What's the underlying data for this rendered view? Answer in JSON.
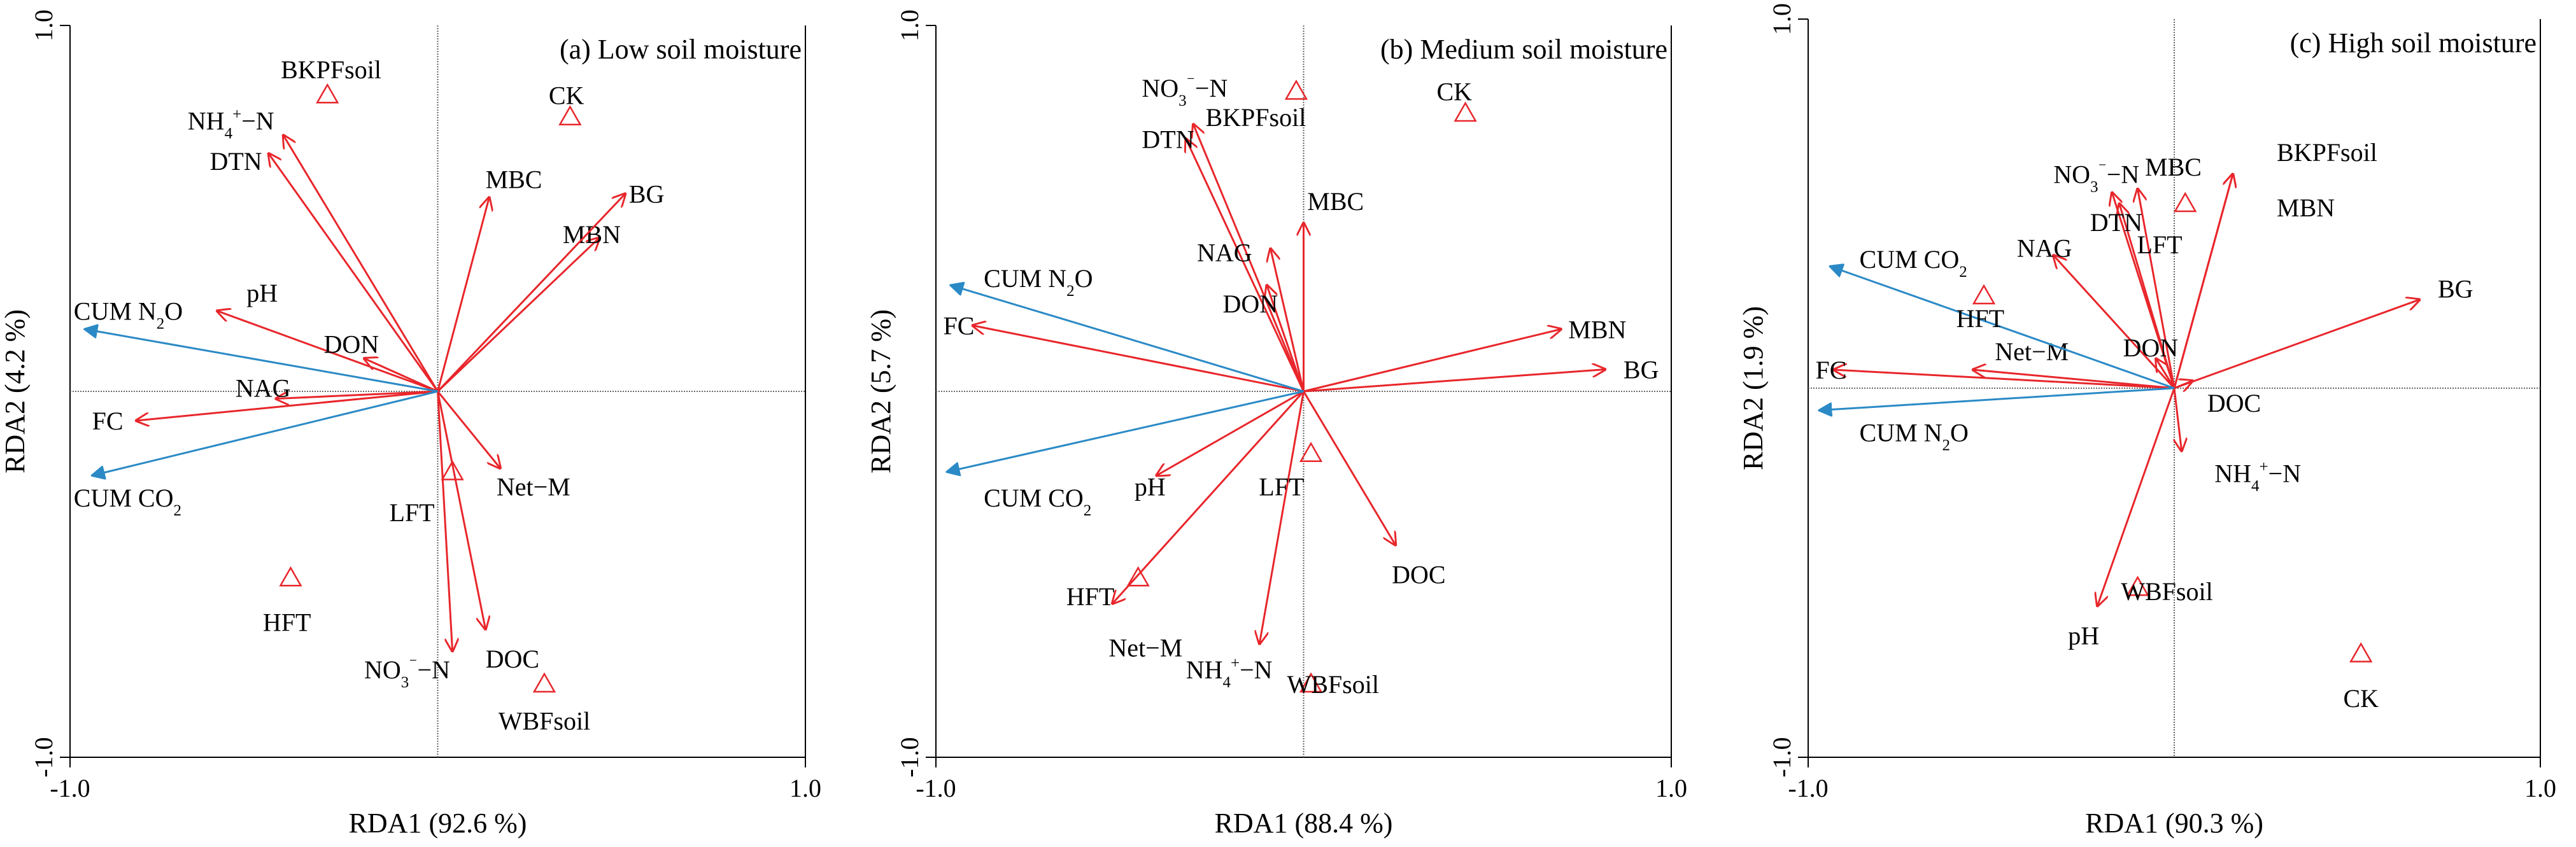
{
  "colors": {
    "response": "#2b8ac6",
    "explanatory": "#e8262b",
    "treatment": "#e8262b",
    "axis": "#000000",
    "refline": "#666666"
  },
  "chart_data": [
    {
      "type": "scatter",
      "title": "(a) Low soil moisture",
      "xlabel": "RDA1 (92.6 %)",
      "ylabel": "RDA2 (4.2 %)",
      "xlim": [
        -1.0,
        1.0
      ],
      "ylim": [
        -1.0,
        1.0
      ],
      "xticks": [
        {
          "v": -1.0,
          "label": "-1.0"
        },
        {
          "v": 1.0,
          "label": "1.0"
        }
      ],
      "yticks": [
        {
          "v": 1.0,
          "label": "1.0"
        },
        {
          "v": -1.0,
          "label": "-1.0"
        }
      ],
      "response_arrows": [
        {
          "name": "CUM N2O",
          "sub": "2",
          "x": -0.96,
          "y": 0.17,
          "lx": -0.99,
          "ly": 0.22
        },
        {
          "name": "CUM CO",
          "sub": "2",
          "x": -0.94,
          "y": -0.23,
          "lx": -0.99,
          "ly": -0.29
        }
      ],
      "explanatory_arrows": [
        {
          "name": "NH4+−N",
          "x": -0.42,
          "y": 0.7,
          "lx": -0.68,
          "ly": 0.74
        },
        {
          "name": "DTN",
          "x": -0.46,
          "y": 0.65,
          "lx": -0.62,
          "ly": 0.63
        },
        {
          "name": "MBC",
          "x": 0.14,
          "y": 0.53,
          "lx": 0.13,
          "ly": 0.58
        },
        {
          "name": "MBN",
          "x": 0.44,
          "y": 0.42,
          "lx": 0.34,
          "ly": 0.43
        },
        {
          "name": "BG",
          "x": 0.51,
          "y": 0.54,
          "lx": 0.52,
          "ly": 0.54
        },
        {
          "name": "pH",
          "x": -0.6,
          "y": 0.22,
          "lx": -0.52,
          "ly": 0.27
        },
        {
          "name": "DON",
          "x": -0.2,
          "y": 0.09,
          "lx": -0.31,
          "ly": 0.13
        },
        {
          "name": "NAG",
          "x": -0.44,
          "y": -0.02,
          "lx": -0.55,
          "ly": 0.01
        },
        {
          "name": "FC",
          "x": -0.82,
          "y": -0.08,
          "lx": -0.94,
          "ly": -0.08
        },
        {
          "name": "Net−M",
          "x": 0.17,
          "y": -0.21,
          "lx": 0.16,
          "ly": -0.26
        },
        {
          "name": "NO3−N",
          "x": 0.04,
          "y": -0.71,
          "lx": -0.2,
          "ly": -0.76
        },
        {
          "name": "DOC",
          "x": 0.13,
          "y": -0.65,
          "lx": 0.13,
          "ly": -0.73
        }
      ],
      "treatments": [
        {
          "name": "BKPFsoil",
          "x": -0.3,
          "y": 0.81,
          "lx": -0.29,
          "ly": 0.88
        },
        {
          "name": "CK",
          "x": 0.36,
          "y": 0.75,
          "lx": 0.35,
          "ly": 0.81
        },
        {
          "name": "LFT",
          "x": 0.04,
          "y": -0.22,
          "lx": -0.07,
          "ly": -0.33
        },
        {
          "name": "HFT",
          "x": -0.4,
          "y": -0.51,
          "lx": -0.41,
          "ly": -0.63
        },
        {
          "name": "WBFsoil",
          "x": 0.29,
          "y": -0.8,
          "lx": 0.29,
          "ly": -0.9
        }
      ]
    },
    {
      "type": "scatter",
      "title": "(b) Medium soil moisture",
      "xlabel": "RDA1 (88.4 %)",
      "ylabel": "RDA2 (5.7 %)",
      "xlim": [
        -1.0,
        1.0
      ],
      "ylim": [
        -1.0,
        1.0
      ],
      "xticks": [
        {
          "v": -1.0,
          "label": "-1.0"
        },
        {
          "v": 1.0,
          "label": "1.0"
        }
      ],
      "yticks": [
        {
          "v": 1.0,
          "label": "1.0"
        },
        {
          "v": -1.0,
          "label": "-1.0"
        }
      ],
      "response_arrows": [
        {
          "name": "CUM N2O",
          "sub": "2",
          "x": -0.96,
          "y": 0.29,
          "lx": -0.87,
          "ly": 0.31
        },
        {
          "name": "CUM CO",
          "sub": "2",
          "x": -0.97,
          "y": -0.22,
          "lx": -0.87,
          "ly": -0.29
        }
      ],
      "explanatory_arrows": [
        {
          "name": "NO3−N",
          "x": -0.3,
          "y": 0.73,
          "lx": -0.44,
          "ly": 0.83
        },
        {
          "name": "DTN",
          "x": -0.32,
          "y": 0.69,
          "lx": -0.44,
          "ly": 0.69
        },
        {
          "name": "MBC",
          "x": 0.0,
          "y": 0.46,
          "lx": 0.01,
          "ly": 0.52
        },
        {
          "name": "NAG",
          "x": -0.09,
          "y": 0.39,
          "lx": -0.29,
          "ly": 0.38
        },
        {
          "name": "DON",
          "x": -0.1,
          "y": 0.29,
          "lx": -0.22,
          "ly": 0.24
        },
        {
          "name": "FC",
          "x": -0.9,
          "y": 0.18,
          "lx": -0.98,
          "ly": 0.18
        },
        {
          "name": "MBN",
          "x": 0.7,
          "y": 0.17,
          "lx": 0.72,
          "ly": 0.17
        },
        {
          "name": "BG",
          "x": 0.82,
          "y": 0.06,
          "lx": 0.87,
          "ly": 0.06
        },
        {
          "name": "pH",
          "x": -0.4,
          "y": -0.23,
          "lx": -0.46,
          "ly": -0.26
        },
        {
          "name": "DOC",
          "x": 0.25,
          "y": -0.42,
          "lx": 0.24,
          "ly": -0.5
        },
        {
          "name": "Net−M",
          "x": -0.52,
          "y": -0.58,
          "lx": -0.53,
          "ly": -0.7
        },
        {
          "name": "NH4+−N",
          "x": -0.12,
          "y": -0.69,
          "lx": -0.32,
          "ly": -0.76
        }
      ],
      "treatments": [
        {
          "name": "BKPFsoil",
          "x": -0.02,
          "y": 0.82,
          "lx": -0.13,
          "ly": 0.75
        },
        {
          "name": "CK",
          "x": 0.44,
          "y": 0.76,
          "lx": 0.41,
          "ly": 0.82
        },
        {
          "name": "LFT",
          "x": 0.02,
          "y": -0.17,
          "lx": -0.06,
          "ly": -0.26
        },
        {
          "name": "HFT",
          "x": -0.45,
          "y": -0.51,
          "lx": -0.58,
          "ly": -0.56
        },
        {
          "name": "WBFsoil",
          "x": 0.02,
          "y": -0.8,
          "lx": 0.08,
          "ly": -0.8
        }
      ]
    },
    {
      "type": "scatter",
      "title": "(c) High soil moisture",
      "xlabel": "RDA1 (90.3 %)",
      "ylabel": "RDA2 (1.9 %)",
      "xlim": [
        -1.0,
        1.0
      ],
      "ylim": [
        -1.0,
        1.0
      ],
      "xticks": [
        {
          "v": -1.0,
          "label": "-1.0"
        },
        {
          "v": 1.0,
          "label": "1.0"
        }
      ],
      "yticks": [
        {
          "v": 1.0,
          "label": "1.0"
        },
        {
          "v": -1.0,
          "label": "-1.0"
        }
      ],
      "response_arrows": [
        {
          "name": "CUM CO",
          "sub": "2",
          "x": -0.94,
          "y": 0.33,
          "lx": -0.86,
          "ly": 0.35
        },
        {
          "name": "CUM N2O",
          "sub": "2",
          "x": -0.97,
          "y": -0.06,
          "lx": -0.86,
          "ly": -0.12
        }
      ],
      "explanatory_arrows": [
        {
          "name": "NO3−N",
          "x": -0.17,
          "y": 0.53,
          "lx": -0.33,
          "ly": 0.58
        },
        {
          "name": "MBC",
          "x": -0.1,
          "y": 0.54,
          "lx": -0.08,
          "ly": 0.6
        },
        {
          "name": "DTN",
          "x": -0.15,
          "y": 0.5,
          "lx": -0.23,
          "ly": 0.45
        },
        {
          "name": "NAG",
          "x": -0.33,
          "y": 0.36,
          "lx": -0.43,
          "ly": 0.38
        },
        {
          "name": "BKPFsoil",
          "x": 0.16,
          "y": 0.58,
          "lx": 0.28,
          "ly": 0.64
        },
        {
          "name": "MBN",
          "x": 0.16,
          "y": 0.58,
          "lx": 0.28,
          "ly": 0.49
        },
        {
          "name": "BG",
          "x": 0.67,
          "y": 0.24,
          "lx": 0.72,
          "ly": 0.27
        },
        {
          "name": "DON",
          "x": -0.05,
          "y": 0.08,
          "lx": -0.14,
          "ly": 0.11
        },
        {
          "name": "Net−M",
          "x": -0.55,
          "y": 0.05,
          "lx": -0.49,
          "ly": 0.1
        },
        {
          "name": "FC",
          "x": -0.93,
          "y": 0.05,
          "lx": -0.98,
          "ly": 0.05
        },
        {
          "name": "DOC",
          "x": 0.05,
          "y": 0.02,
          "lx": 0.09,
          "ly": -0.04
        },
        {
          "name": "NH4+−N",
          "x": 0.02,
          "y": -0.17,
          "lx": 0.11,
          "ly": -0.23
        },
        {
          "name": "pH",
          "x": -0.21,
          "y": -0.59,
          "lx": -0.29,
          "ly": -0.67
        }
      ],
      "treatments": [
        {
          "name": "LFT",
          "x": 0.03,
          "y": 0.5,
          "lx": -0.04,
          "ly": 0.39
        },
        {
          "name": "HFT",
          "x": -0.52,
          "y": 0.25,
          "lx": -0.53,
          "ly": 0.19
        },
        {
          "name": "WBFsoil",
          "x": -0.1,
          "y": -0.54,
          "lx": -0.02,
          "ly": -0.55
        },
        {
          "name": "CK",
          "x": 0.51,
          "y": -0.72,
          "lx": 0.51,
          "ly": -0.84
        }
      ]
    }
  ]
}
